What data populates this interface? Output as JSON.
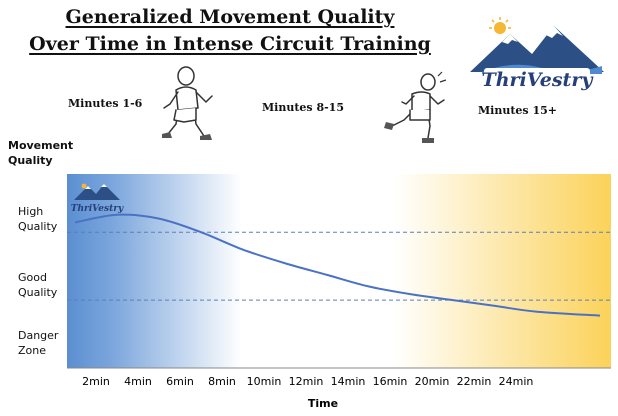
{
  "header": {
    "title_line1": "Generalized Movement Quality",
    "title_line2": "Over Time in Intense Circuit Training"
  },
  "phases": [
    "Minutes 1-6",
    "Minutes 8-15",
    "Minutes 15+"
  ],
  "brand": {
    "name": "ThriVestry"
  },
  "colors": {
    "blue_zone": "#5b8fd1",
    "gold_zone": "#fbd25a",
    "curve": "#4a72c4",
    "reference_lines": "#5a7fb8"
  },
  "chart_data": {
    "type": "line",
    "title": "Generalized Movement Quality Over Time in Intense Circuit Training",
    "xlabel": "Time",
    "ylabel": "Movement Quality",
    "x_unit": "min",
    "x_ticks": [
      "2min",
      "4min",
      "6min",
      "8min",
      "10min",
      "12min",
      "14min",
      "16min",
      "20min",
      "22min",
      "24min"
    ],
    "y_categories": [
      "High Quality",
      "Good Quality",
      "Danger Zone"
    ],
    "y_category_lines": [
      "High Quality",
      "Good Quality"
    ],
    "x_range_index": [
      -0.55,
      12.3
    ],
    "y_range": [
      0,
      100
    ],
    "reference_lines_y": [
      70,
      35
    ],
    "series": [
      {
        "x_index": [
          -0.5,
          0.5,
          1.5,
          2.5,
          3.5,
          4.5,
          5.5,
          6.5,
          7.5,
          8.5,
          9.5,
          10.5,
          12.0
        ],
        "y": [
          75,
          79,
          77,
          70,
          61,
          54,
          48,
          42,
          38,
          35,
          32,
          29,
          27
        ]
      }
    ],
    "background_gradient": "blue at start fading to white, gold toward the end",
    "grid": false,
    "legend": "none"
  }
}
